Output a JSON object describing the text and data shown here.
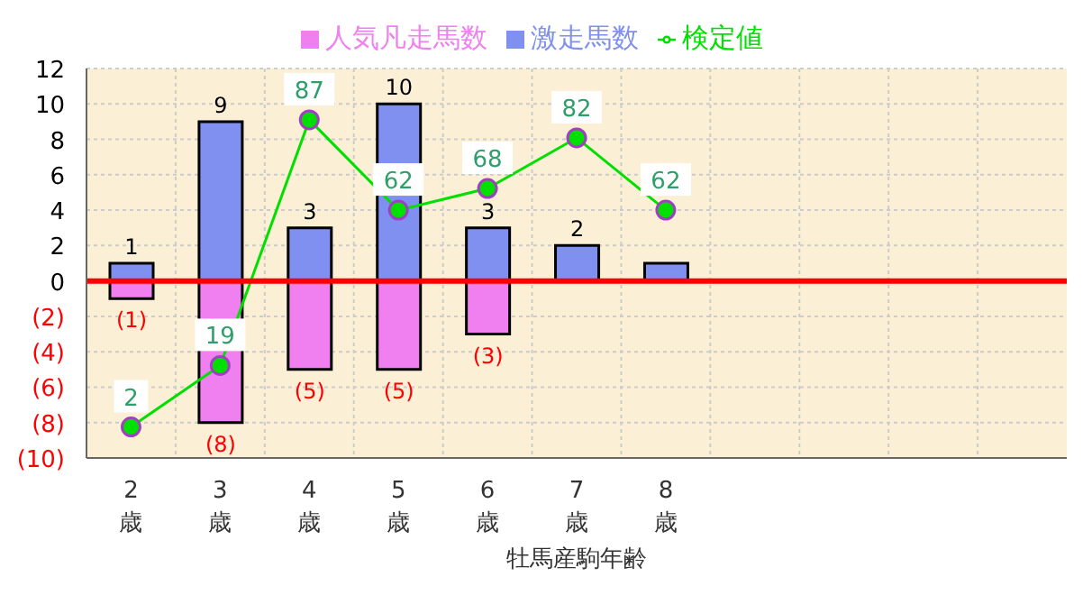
{
  "chart_data": {
    "type": "bar",
    "stacked": true,
    "xlabel": "牡馬産駒年齢",
    "categories": [
      "2\n歳",
      "3\n歳",
      "4\n歳",
      "5\n歳",
      "6\n歳",
      "7\n歳",
      "8\n歳",
      null,
      null,
      null,
      null
    ],
    "series": [
      {
        "name": "人気凡走馬数",
        "color": "#f080f0",
        "values": [
          -1,
          -8,
          -5,
          -5,
          -3,
          null,
          null,
          null,
          null,
          null,
          null
        ],
        "value_labels": [
          "(1)",
          "(8)",
          "(5)",
          "(5)",
          "(3)",
          null,
          null,
          null,
          null,
          null,
          null
        ]
      },
      {
        "name": "激走馬数",
        "color": "#8090f0",
        "values": [
          1,
          9,
          3,
          10,
          3,
          2,
          1,
          null,
          null,
          null,
          null
        ],
        "value_labels": [
          "1",
          "9",
          "3",
          "10",
          "3",
          "2",
          null,
          null,
          null,
          null,
          null
        ]
      },
      {
        "name": "検定値",
        "type": "line",
        "axis": "y2",
        "color": "#00e000",
        "marker": "circle",
        "values": [
          2,
          19,
          87,
          62,
          68,
          82,
          62,
          null,
          null,
          null,
          null
        ],
        "value_labels": [
          "2",
          "19",
          "87",
          "62",
          "68",
          "82",
          "62",
          null,
          null,
          null,
          null
        ]
      }
    ],
    "ylim": [
      -10,
      12
    ],
    "yticks": [
      {
        "value": -10,
        "label": "(10)"
      },
      {
        "value": -8,
        "label": "(8)"
      },
      {
        "value": -6,
        "label": "(6)"
      },
      {
        "value": -4,
        "label": "(4)"
      },
      {
        "value": -2,
        "label": "(2)"
      },
      0,
      2,
      4,
      6,
      8,
      10,
      12
    ],
    "y2lim": [
      -6.6,
      101.2
    ],
    "ref_lines": [
      {
        "axis": "y",
        "value": 0,
        "color": "#ff0000"
      }
    ],
    "grid": true,
    "legend": "top"
  }
}
